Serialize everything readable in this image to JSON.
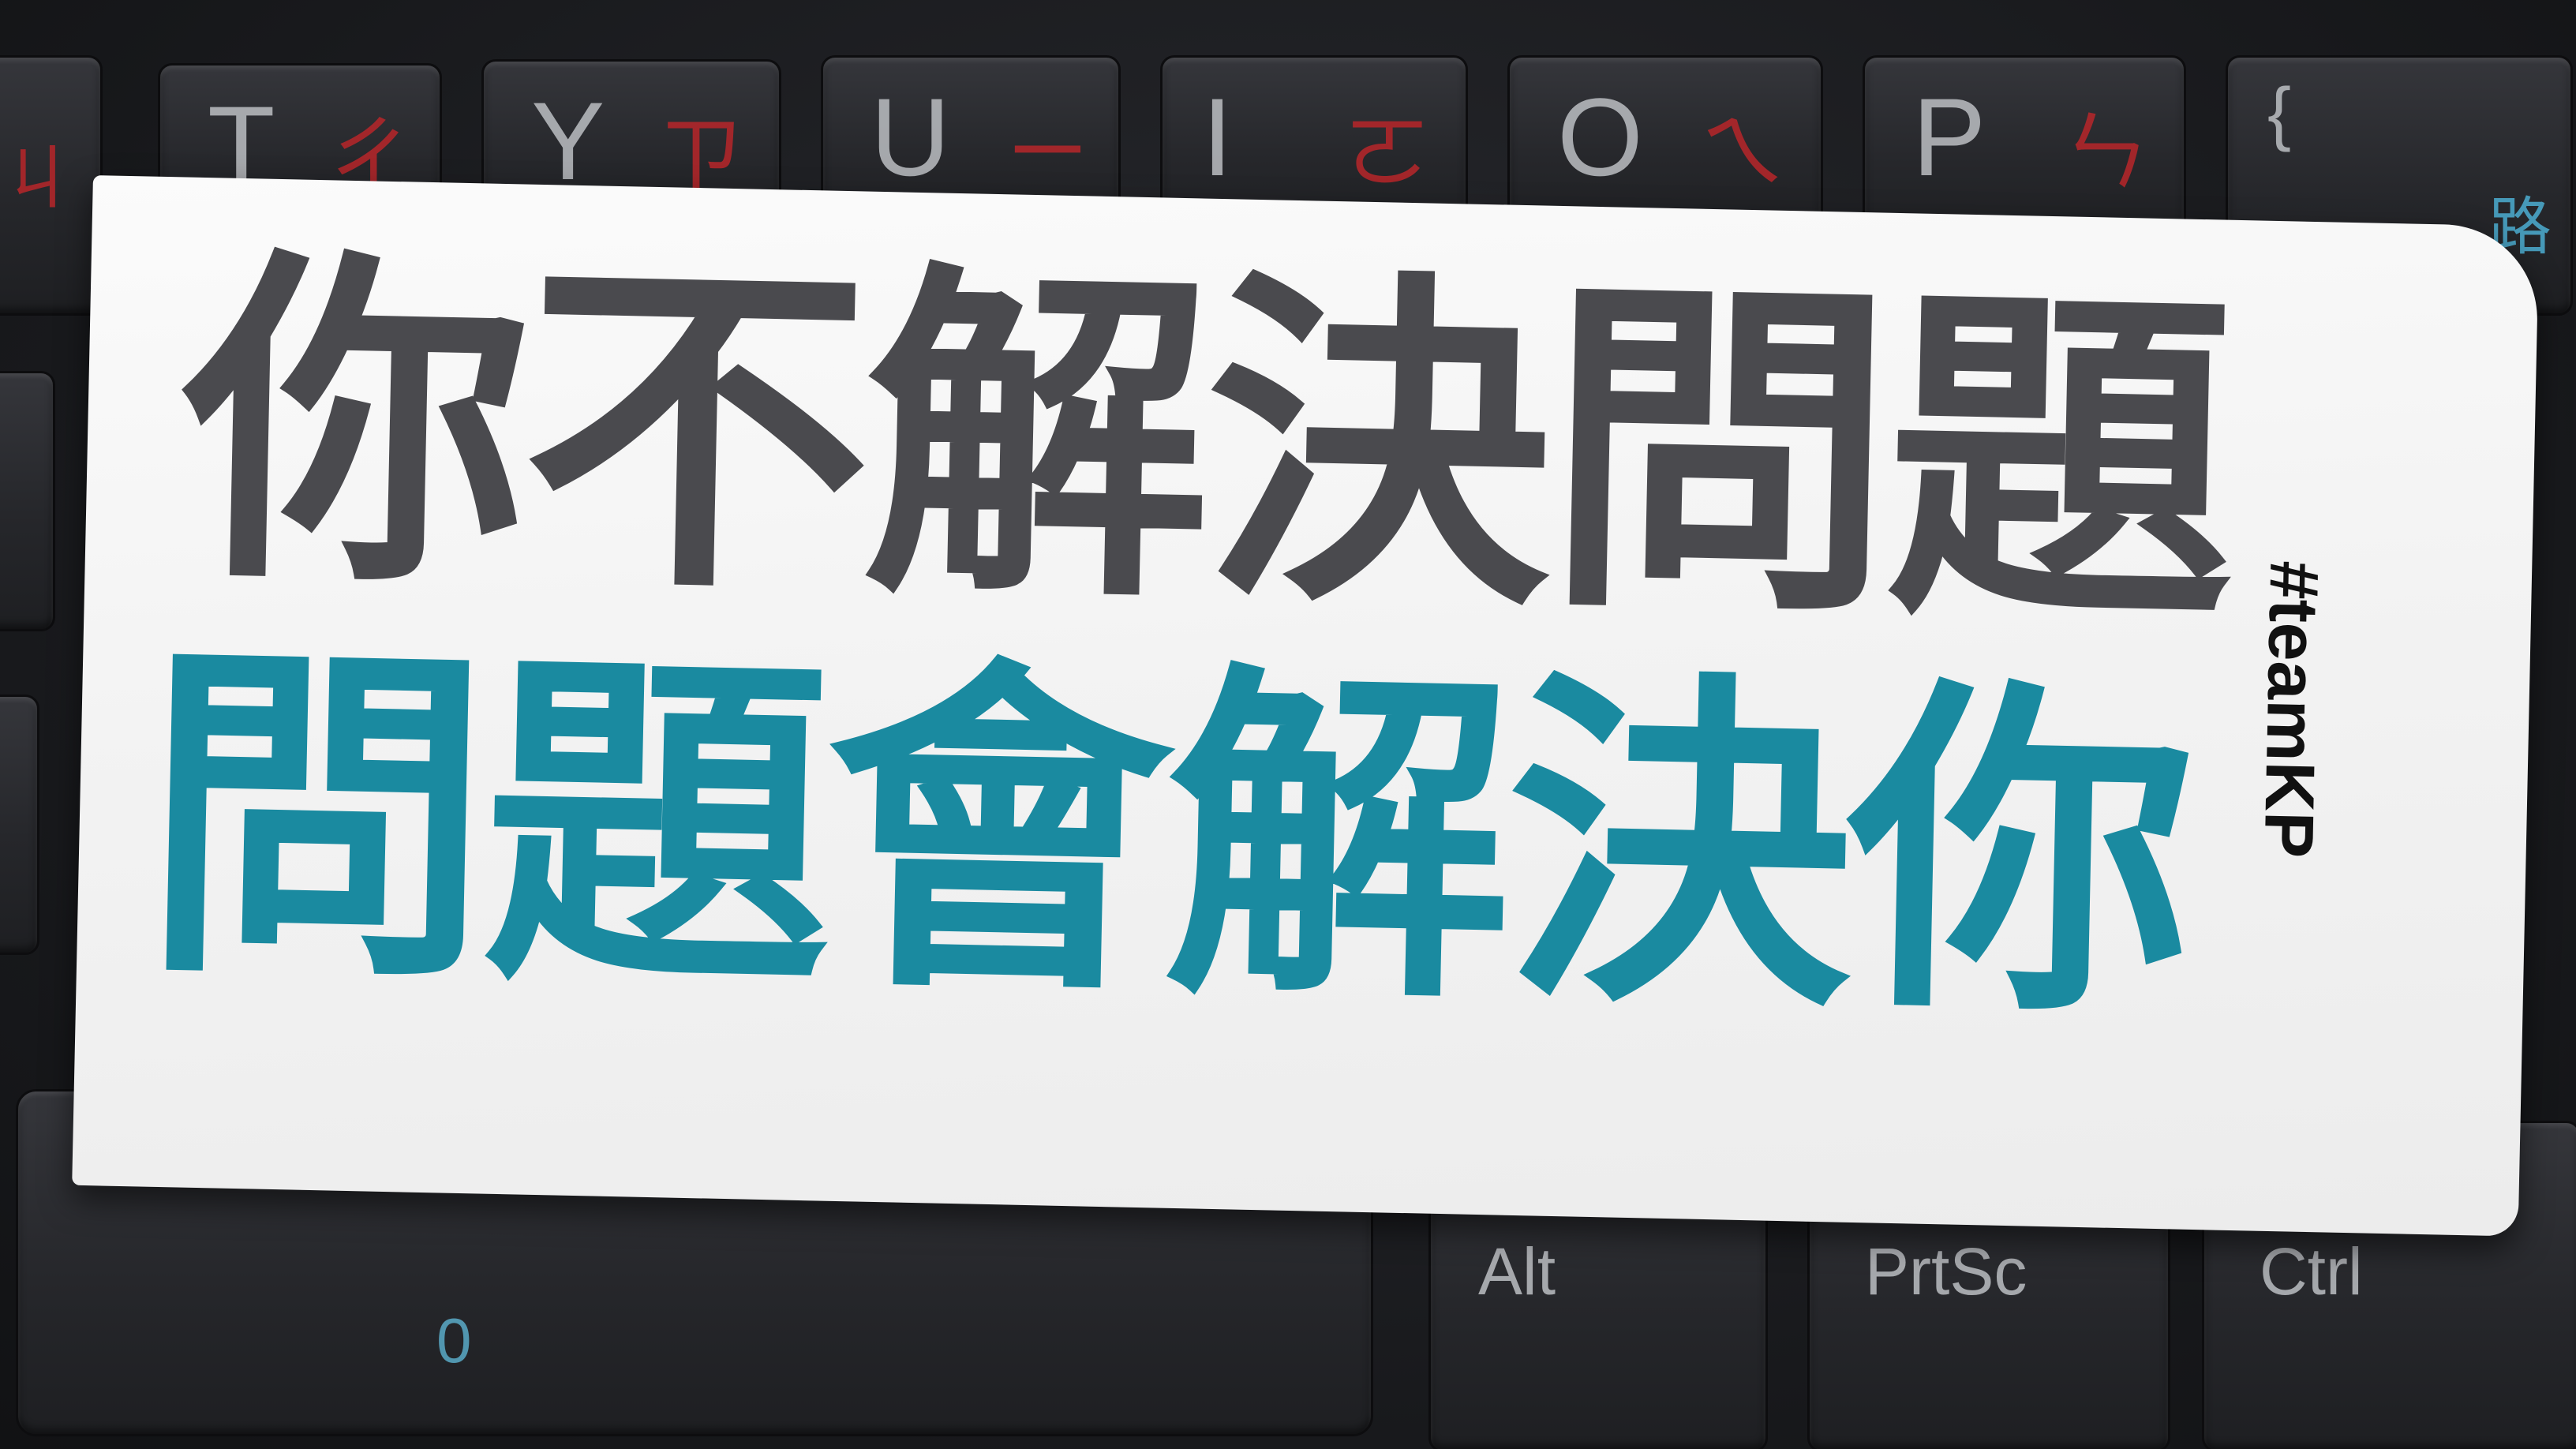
{
  "keyboard": {
    "top_row": [
      {
        "letter": "T",
        "sub": "ㄔ"
      },
      {
        "letter": "Y",
        "sub": "ㄗ"
      },
      {
        "letter": "U",
        "sub": "ㄧ"
      },
      {
        "letter": "I",
        "sub": "ㄛ"
      },
      {
        "letter": "O",
        "sub": "ㄟ"
      },
      {
        "letter": "P",
        "sub": "ㄣ"
      },
      {
        "letter": "{",
        "sub": ""
      }
    ],
    "left_key": {
      "letter": "",
      "sub": "ㄐ"
    },
    "right_edge_char": "路",
    "space_legend": "0",
    "bottom_row": [
      "Alt",
      "PrtSc",
      "Ctrl"
    ]
  },
  "sticker": {
    "line1": "你不解決問題",
    "line2": "問題會解決你",
    "hashtag": "#teamKP",
    "colors": {
      "line1": "#4a4a4e",
      "line2": "#1a8aa0",
      "background": "#f4f4f4"
    }
  }
}
